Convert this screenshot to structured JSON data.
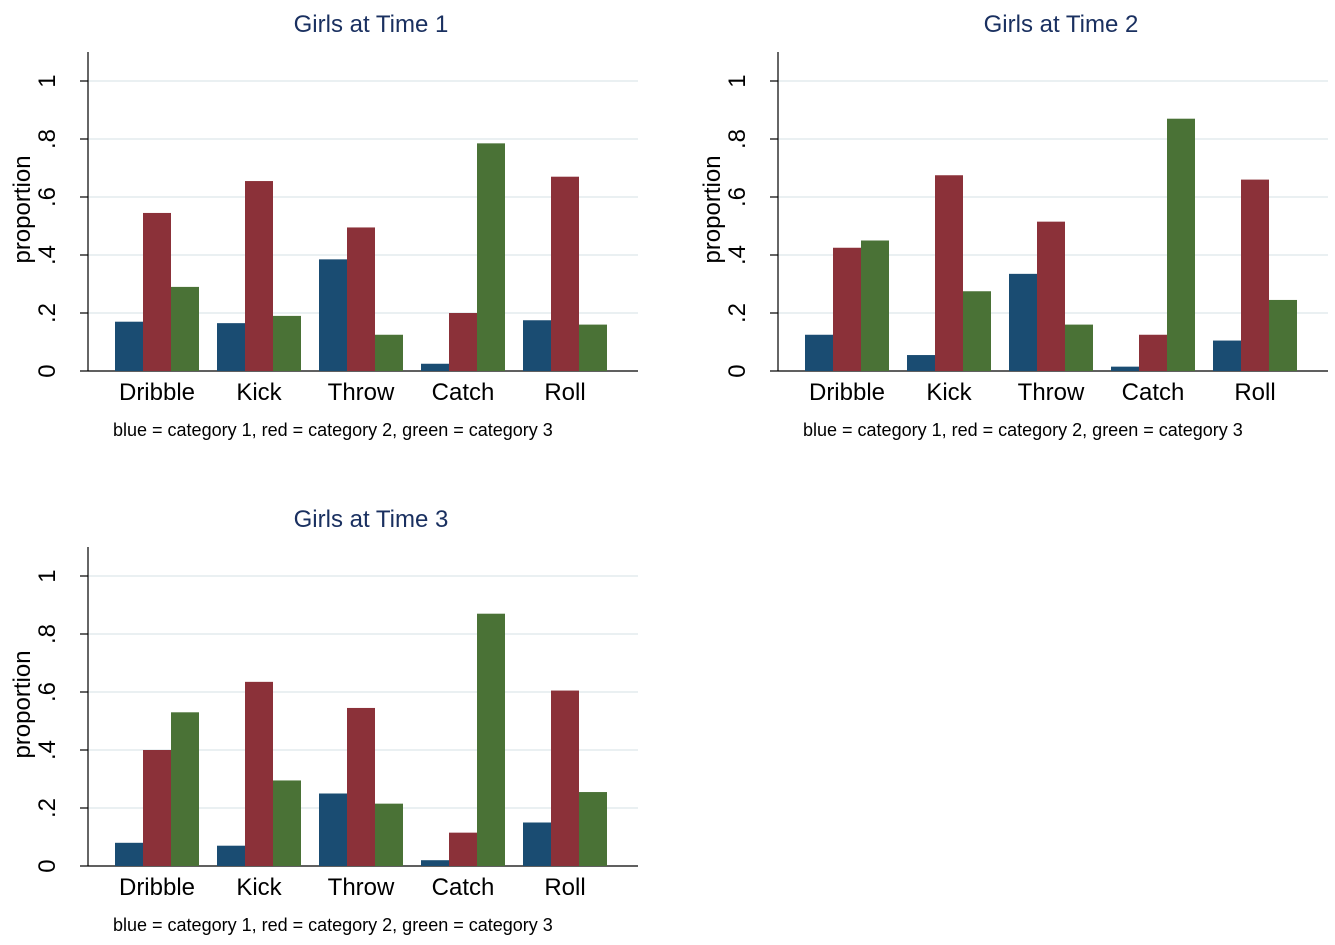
{
  "figure": {
    "background": "#ffffff",
    "grid_color": "#e3ebee",
    "title_color": "#1a3060",
    "series_colors": [
      "#1a4c72",
      "#8b3139",
      "#4a7236"
    ]
  },
  "chart_data": [
    {
      "type": "bar",
      "title": "Girls at Time 1",
      "ylabel": "proportion",
      "note": "blue = category 1, red = category 2, green = category 3",
      "categories": [
        "Dribble",
        "Kick",
        "Throw",
        "Catch",
        "Roll"
      ],
      "series": [
        {
          "values": [
            0.17,
            0.165,
            0.385,
            0.025,
            0.175
          ]
        },
        {
          "values": [
            0.545,
            0.655,
            0.495,
            0.2,
            0.67
          ]
        },
        {
          "values": [
            0.29,
            0.19,
            0.125,
            0.785,
            0.16
          ]
        }
      ],
      "ylim": [
        0,
        1.1
      ],
      "yticks": [
        0,
        0.2,
        0.4,
        0.6,
        0.8,
        1
      ],
      "ytick_labels": [
        "0",
        ".2",
        ".4",
        ".6",
        ".8",
        "1"
      ],
      "grid": true
    },
    {
      "type": "bar",
      "title": "Girls at Time 2",
      "ylabel": "proportion",
      "note": "blue = category 1, red = category 2, green = category 3",
      "categories": [
        "Dribble",
        "Kick",
        "Throw",
        "Catch",
        "Roll"
      ],
      "series": [
        {
          "values": [
            0.125,
            0.055,
            0.335,
            0.015,
            0.105
          ]
        },
        {
          "values": [
            0.425,
            0.675,
            0.515,
            0.125,
            0.66
          ]
        },
        {
          "values": [
            0.45,
            0.275,
            0.16,
            0.87,
            0.245
          ]
        }
      ],
      "ylim": [
        0,
        1.1
      ],
      "yticks": [
        0,
        0.2,
        0.4,
        0.6,
        0.8,
        1
      ],
      "ytick_labels": [
        "0",
        ".2",
        ".4",
        ".6",
        ".8",
        "1"
      ],
      "grid": true
    },
    {
      "type": "bar",
      "title": "Girls at Time 3",
      "ylabel": "proportion",
      "note": "blue = category 1, red = category 2, green = category 3",
      "categories": [
        "Dribble",
        "Kick",
        "Throw",
        "Catch",
        "Roll"
      ],
      "series": [
        {
          "values": [
            0.08,
            0.07,
            0.25,
            0.02,
            0.15
          ]
        },
        {
          "values": [
            0.4,
            0.635,
            0.545,
            0.115,
            0.605
          ]
        },
        {
          "values": [
            0.53,
            0.295,
            0.215,
            0.87,
            0.255
          ]
        }
      ],
      "ylim": [
        0,
        1.1
      ],
      "yticks": [
        0,
        0.2,
        0.4,
        0.6,
        0.8,
        1
      ],
      "ytick_labels": [
        "0",
        ".2",
        ".4",
        ".6",
        ".8",
        "1"
      ],
      "grid": true
    }
  ]
}
